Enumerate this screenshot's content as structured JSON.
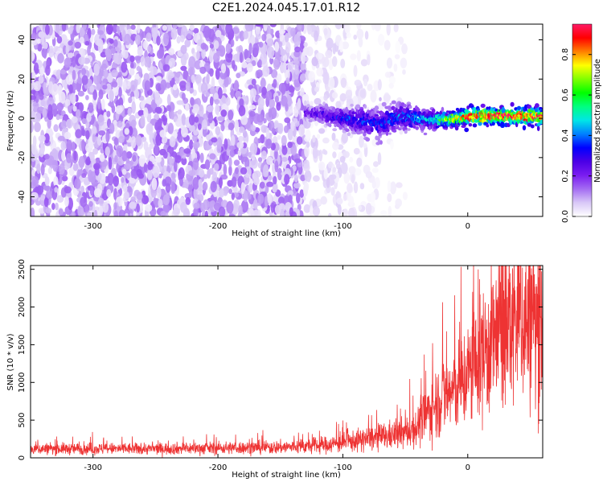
{
  "title": "C2E1.2024.045.17.01.R12",
  "chart_data": [
    {
      "type": "heatmap",
      "xlabel": "Height of straight line (km)",
      "ylabel": "Frequency (Hz)",
      "xlim": [
        -350,
        60
      ],
      "ylim": [
        -50,
        48
      ],
      "xticks": [
        -300,
        -200,
        -100,
        0
      ],
      "yticks": [
        -40,
        -20,
        0,
        20,
        40
      ],
      "colorbar": {
        "label": "Normalized spectral amplitude",
        "range": [
          0,
          0.95
        ],
        "ticks": [
          0.0,
          0.2,
          0.4,
          0.6,
          0.8
        ],
        "colormap": [
          "#ffffff",
          "#d9c8f7",
          "#a46cf2",
          "#7a1cf0",
          "#4b00e6",
          "#0000ff",
          "#0080ff",
          "#00e6e6",
          "#00ff80",
          "#00ff00",
          "#80ff00",
          "#ffff00",
          "#ff8000",
          "#ff0000",
          "#ff1a66"
        ]
      },
      "noise_region": {
        "x": [
          -350,
          -130
        ],
        "freq": [
          -50,
          48
        ],
        "amplitude": 0.12
      },
      "fading_region": {
        "x": [
          -130,
          -50
        ],
        "freq": [
          -50,
          48
        ],
        "amplitude": 0.06
      },
      "signal_band": [
        {
          "x": -130,
          "freq": 3,
          "width": 3,
          "amp": 0.2
        },
        {
          "x": -115,
          "freq": 2,
          "width": 4,
          "amp": 0.25
        },
        {
          "x": -100,
          "freq": 0,
          "width": 5,
          "amp": 0.3
        },
        {
          "x": -85,
          "freq": -1,
          "width": 6,
          "amp": 0.32
        },
        {
          "x": -70,
          "freq": -3,
          "width": 7,
          "amp": 0.3
        },
        {
          "x": -55,
          "freq": 1,
          "width": 6,
          "amp": 0.35
        },
        {
          "x": -40,
          "freq": 0,
          "width": 5,
          "amp": 0.38
        },
        {
          "x": -25,
          "freq": -1,
          "width": 4,
          "amp": 0.45
        },
        {
          "x": -10,
          "freq": 0,
          "width": 3.5,
          "amp": 0.7
        },
        {
          "x": 5,
          "freq": 1,
          "width": 3.5,
          "amp": 0.82
        },
        {
          "x": 20,
          "freq": 1,
          "width": 3.5,
          "amp": 0.85
        },
        {
          "x": 35,
          "freq": 1,
          "width": 3.5,
          "amp": 0.85
        },
        {
          "x": 50,
          "freq": 1,
          "width": 4,
          "amp": 0.8
        },
        {
          "x": 60,
          "freq": 1,
          "width": 4,
          "amp": 0.8
        }
      ]
    },
    {
      "type": "line",
      "xlabel": "Height of straight line (km)",
      "ylabel": "SNR (10 * v/v)",
      "xlim": [
        -350,
        60
      ],
      "ylim": [
        0,
        2550
      ],
      "xticks": [
        -300,
        -200,
        -100,
        0
      ],
      "yticks": [
        0,
        500,
        1000,
        1500,
        2000,
        2500
      ],
      "color": "#ee3333",
      "series": [
        {
          "x": [
            -350,
            -300,
            -250,
            -200,
            -150,
            -120,
            -100,
            -80,
            -60,
            -50,
            -40,
            -30,
            -20,
            -10,
            0,
            10,
            20,
            30,
            40,
            50,
            60
          ],
          "values": [
            120,
            120,
            120,
            130,
            140,
            160,
            200,
            250,
            300,
            330,
            420,
            650,
            820,
            900,
            1100,
            1350,
            1550,
            1700,
            1850,
            1800,
            1800
          ]
        }
      ]
    }
  ]
}
